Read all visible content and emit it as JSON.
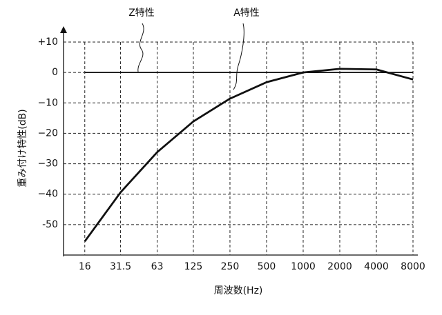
{
  "chart_data": {
    "type": "line",
    "x_label": "周波数(Hz)",
    "y_label": "重み付け特性(dB)",
    "x": [
      16,
      31.5,
      63,
      125,
      250,
      500,
      1000,
      2000,
      4000,
      8000
    ],
    "series": [
      {
        "name": "Z特性",
        "color": "#111111",
        "values": [
          0,
          0,
          0,
          0,
          0,
          0,
          0,
          0,
          0,
          0
        ]
      },
      {
        "name": "A特性",
        "color": "#111111",
        "values": [
          -55.5,
          -39.4,
          -26.2,
          -16.1,
          -8.6,
          -3.2,
          0,
          1.2,
          1.0,
          -2.3
        ]
      }
    ],
    "log_x": true,
    "xlim": [
      10.7,
      8000
    ],
    "xticks": [
      16,
      31.5,
      63,
      125,
      250,
      500,
      1000,
      2000,
      4000,
      8000
    ],
    "ylim": [
      -60,
      10
    ],
    "yticks": [
      {
        "value": 10,
        "label": "+10"
      },
      0,
      {
        "value": -10,
        "label": "−10"
      },
      {
        "value": -20,
        "label": "−20"
      },
      {
        "value": -30,
        "label": "−30"
      },
      {
        "value": -40,
        "label": "−40"
      },
      {
        "value": -50,
        "label": "-50"
      }
    ],
    "grid": true
  }
}
